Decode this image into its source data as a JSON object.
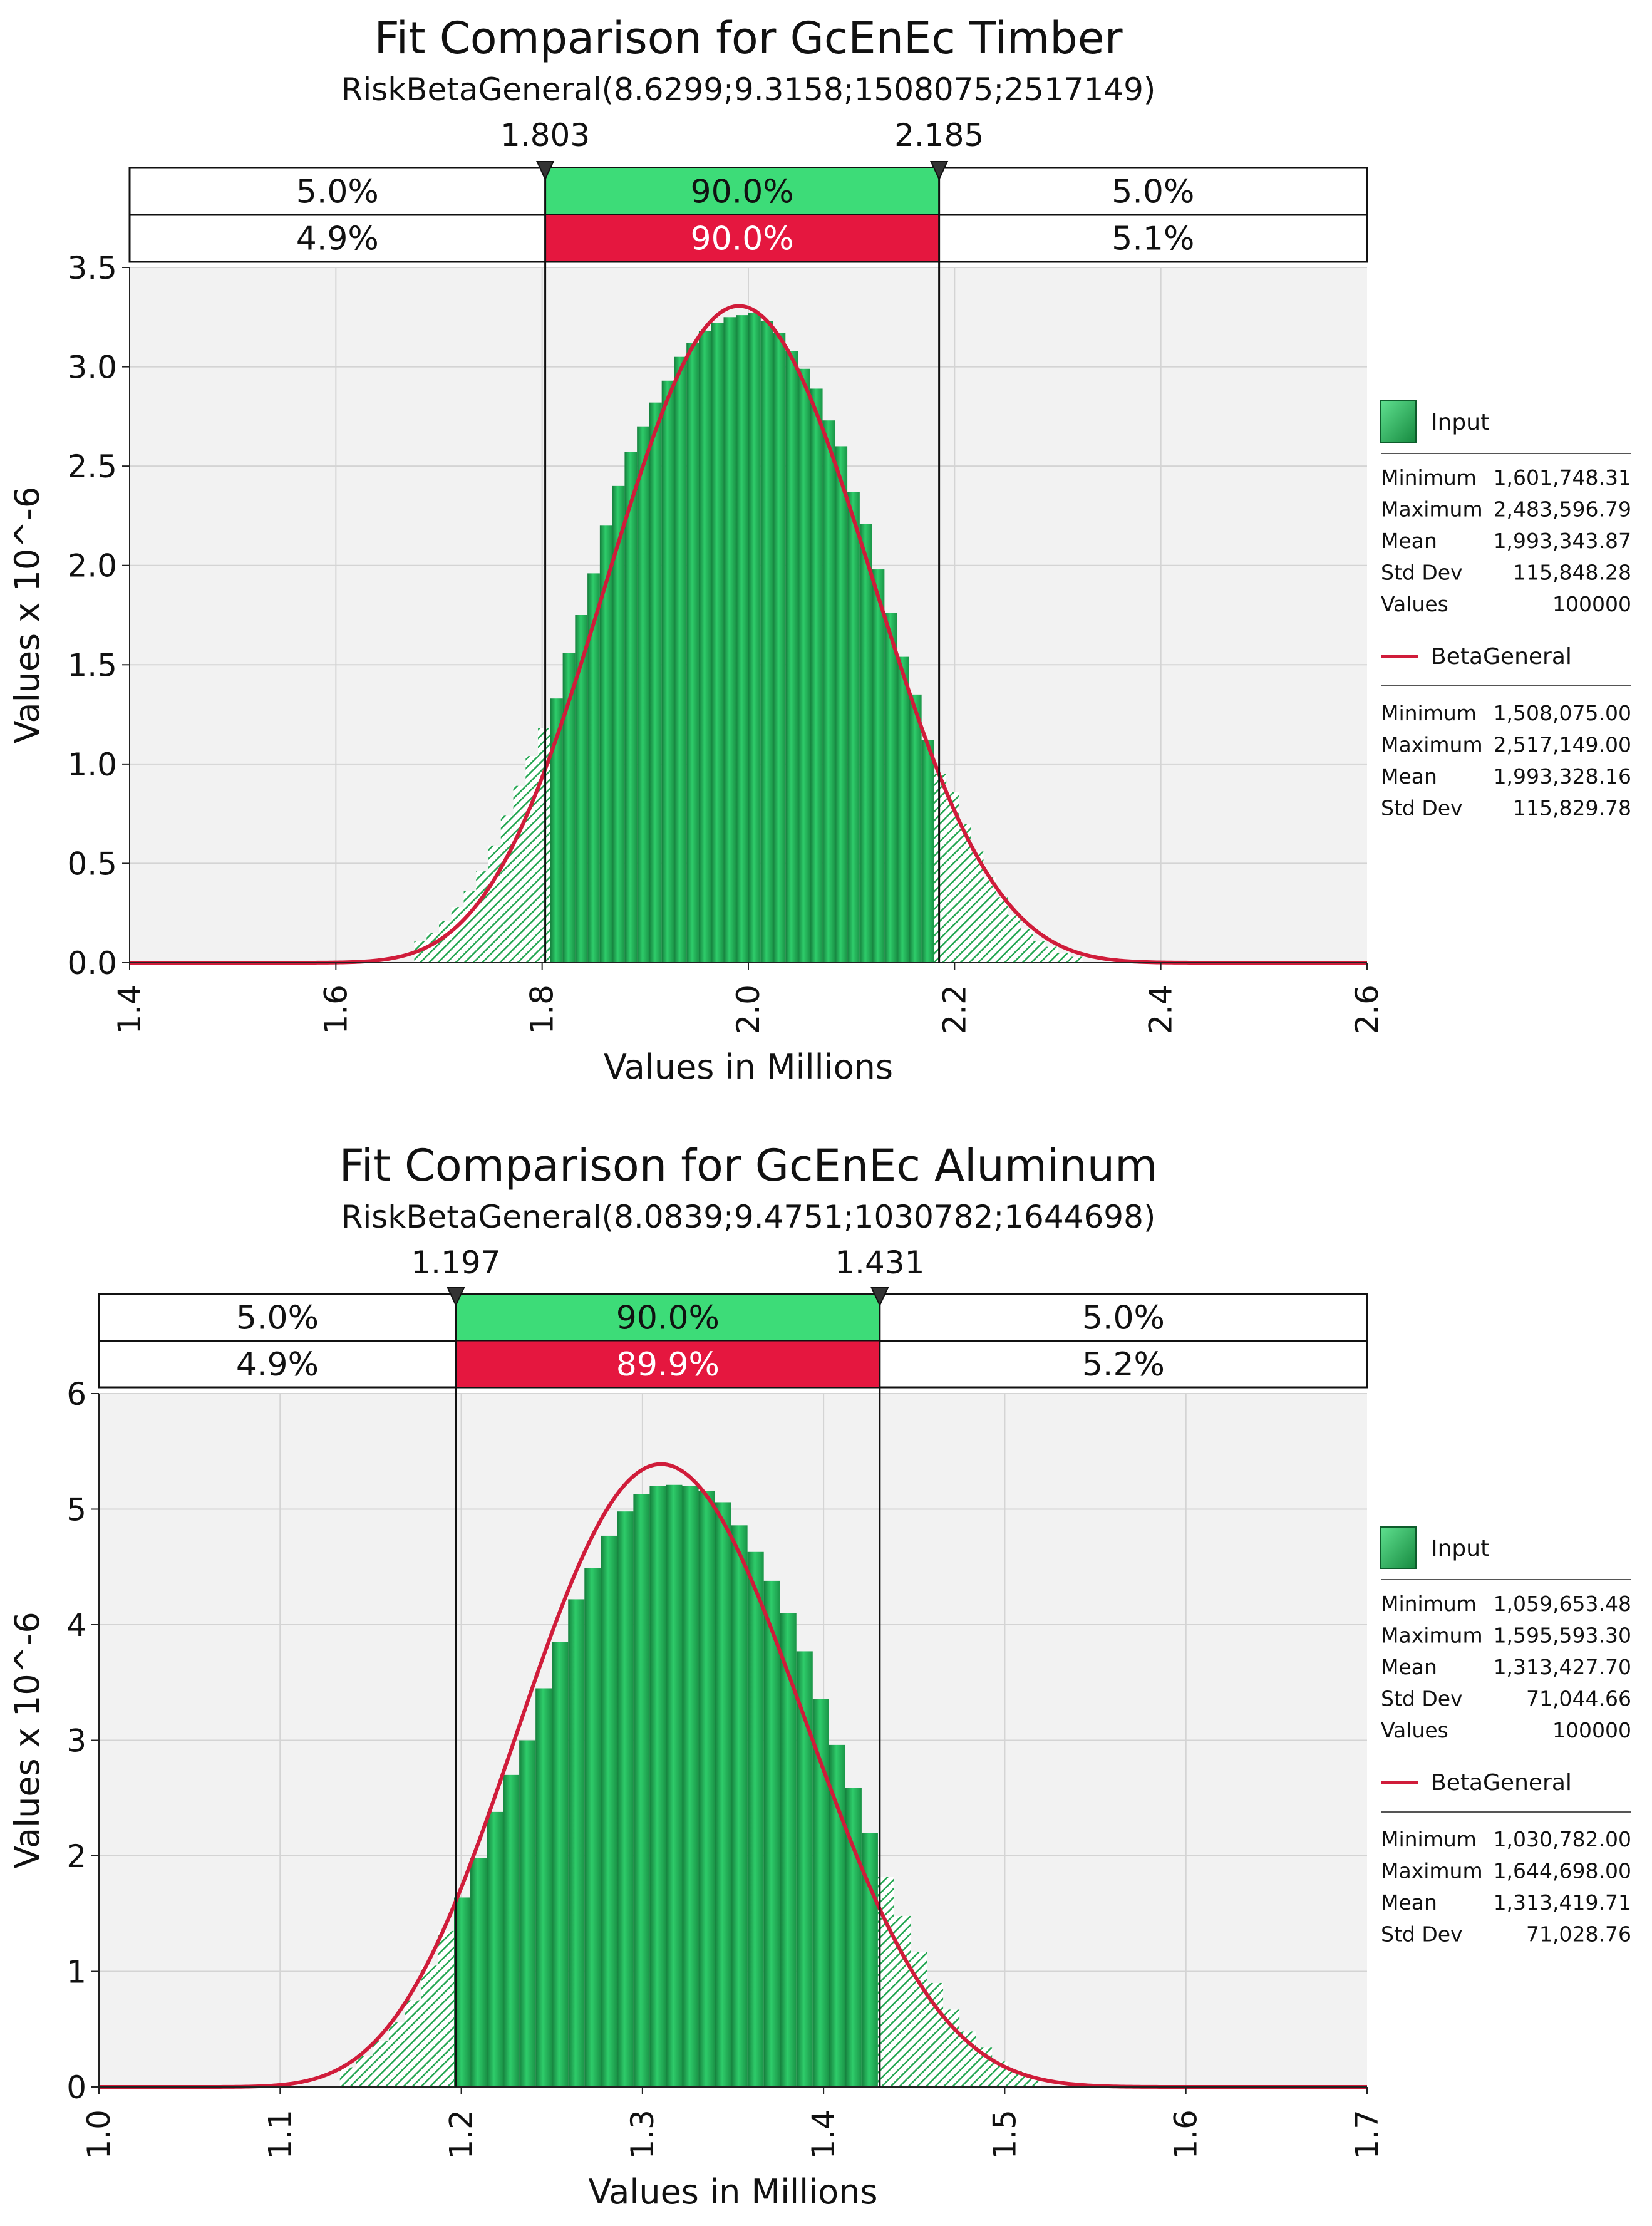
{
  "chart_data": [
    {
      "type": "bar",
      "title": "Fit Comparison for GcEnEc Timber",
      "subtitle": "RiskBetaGeneral(8.6299;9.3158;1508075;2517149)",
      "xlabel": "Values in Millions",
      "ylabel": "Values x 10^-6",
      "xlim": [
        1.4,
        2.6
      ],
      "ylim": [
        0,
        3.5
      ],
      "x_ticks": [
        1.4,
        1.6,
        1.8,
        2.0,
        2.2,
        2.4,
        2.6
      ],
      "x_tick_labels": [
        "1.4",
        "1.6",
        "1.8",
        "2.0",
        "2.2",
        "2.4",
        "2.6"
      ],
      "y_ticks": [
        0,
        0.5,
        1.0,
        1.5,
        2.0,
        2.5,
        3.0,
        3.5
      ],
      "y_tick_labels": [
        "0.0",
        "0.5",
        "1.0",
        "1.5",
        "2.0",
        "2.5",
        "3.0",
        "3.5"
      ],
      "grid": true,
      "markers": [
        {
          "value": 1.803,
          "label": "1.803"
        },
        {
          "value": 2.185,
          "label": "2.185"
        }
      ],
      "fit_band": [
        "5.0%",
        "90.0%",
        "5.0%"
      ],
      "input_band": [
        "4.9%",
        "90.0%",
        "5.1%"
      ],
      "series": [
        {
          "name": "Input",
          "type": "histogram",
          "color": "#2dbd5f",
          "bin_width": 0.012,
          "bin_centers": [
            1.682,
            1.694,
            1.706,
            1.718,
            1.73,
            1.742,
            1.754,
            1.766,
            1.778,
            1.79,
            1.802,
            1.814,
            1.826,
            1.838,
            1.85,
            1.862,
            1.874,
            1.886,
            1.898,
            1.91,
            1.922,
            1.934,
            1.946,
            1.958,
            1.97,
            1.982,
            1.994,
            2.006,
            2.018,
            2.03,
            2.042,
            2.054,
            2.066,
            2.078,
            2.09,
            2.102,
            2.114,
            2.126,
            2.138,
            2.15,
            2.162,
            2.174,
            2.186,
            2.198,
            2.21,
            2.222,
            2.234,
            2.246,
            2.258,
            2.27,
            2.282,
            2.294,
            2.306,
            2.318
          ],
          "values": [
            0.11,
            0.15,
            0.21,
            0.28,
            0.36,
            0.46,
            0.59,
            0.74,
            0.89,
            1.04,
            1.18,
            1.33,
            1.56,
            1.75,
            1.96,
            2.2,
            2.4,
            2.57,
            2.7,
            2.82,
            2.93,
            3.05,
            3.12,
            3.18,
            3.22,
            3.25,
            3.26,
            3.27,
            3.23,
            3.17,
            3.08,
            2.99,
            2.89,
            2.73,
            2.6,
            2.37,
            2.21,
            1.98,
            1.76,
            1.54,
            1.35,
            1.12,
            0.95,
            0.86,
            0.7,
            0.56,
            0.43,
            0.33,
            0.24,
            0.17,
            0.11,
            0.08,
            0.05,
            0.03
          ]
        },
        {
          "name": "BetaGeneral",
          "type": "line",
          "color": "#d01c3a",
          "alpha": 8.6299,
          "beta": 9.3158,
          "min": 1.508075,
          "max": 2.517149
        }
      ],
      "legend": {
        "input_label": "Input",
        "input_stats": [
          {
            "label": "Minimum",
            "value": "1,601,748.31"
          },
          {
            "label": "Maximum",
            "value": "2,483,596.79"
          },
          {
            "label": "Mean",
            "value": "1,993,343.87"
          },
          {
            "label": "Std Dev",
            "value": "115,848.28"
          },
          {
            "label": "Values",
            "value": "100000"
          }
        ],
        "fit_label": "BetaGeneral",
        "fit_stats": [
          {
            "label": "Minimum",
            "value": "1,508,075.00"
          },
          {
            "label": "Maximum",
            "value": "2,517,149.00"
          },
          {
            "label": "Mean",
            "value": "1,993,328.16"
          },
          {
            "label": "Std Dev",
            "value": "115,829.78"
          }
        ]
      }
    },
    {
      "type": "bar",
      "title": "Fit Comparison for GcEnEc Aluminum",
      "subtitle": "RiskBetaGeneral(8.0839;9.4751;1030782;1644698)",
      "xlabel": "Values in Millions",
      "ylabel": "Values x 10^-6",
      "xlim": [
        1.0,
        1.7
      ],
      "ylim": [
        0,
        6
      ],
      "x_ticks": [
        1.0,
        1.1,
        1.2,
        1.3,
        1.4,
        1.5,
        1.6,
        1.7
      ],
      "x_tick_labels": [
        "1.0",
        "1.1",
        "1.2",
        "1.3",
        "1.4",
        "1.5",
        "1.6",
        "1.7"
      ],
      "y_ticks": [
        0,
        1,
        2,
        3,
        4,
        5,
        6
      ],
      "y_tick_labels": [
        "0",
        "1",
        "2",
        "3",
        "4",
        "5",
        "6"
      ],
      "grid": true,
      "markers": [
        {
          "value": 1.197,
          "label": "1.197"
        },
        {
          "value": 1.431,
          "label": "1.431"
        }
      ],
      "fit_band": [
        "5.0%",
        "90.0%",
        "5.0%"
      ],
      "input_band": [
        "4.9%",
        "89.9%",
        "5.2%"
      ],
      "series": [
        {
          "name": "Input",
          "type": "histogram",
          "color": "#2dbd5f",
          "bin_width": 0.009,
          "bin_centers": [
            1.1375,
            1.1465,
            1.1555,
            1.1645,
            1.1735,
            1.1825,
            1.1915,
            1.2005,
            1.2095,
            1.2185,
            1.2275,
            1.2365,
            1.2455,
            1.2545,
            1.2635,
            1.2725,
            1.2815,
            1.2905,
            1.2995,
            1.3085,
            1.3175,
            1.3265,
            1.3355,
            1.3445,
            1.3535,
            1.3625,
            1.3715,
            1.3805,
            1.3895,
            1.3985,
            1.4075,
            1.4165,
            1.4255,
            1.4345,
            1.4435,
            1.4525,
            1.4615,
            1.4705,
            1.4795,
            1.4885,
            1.4975,
            1.5065,
            1.5155
          ],
          "values": [
            0.17,
            0.27,
            0.4,
            0.56,
            0.75,
            1.05,
            1.35,
            1.64,
            1.98,
            2.38,
            2.7,
            3.0,
            3.45,
            3.85,
            4.22,
            4.49,
            4.77,
            4.98,
            5.13,
            5.2,
            5.21,
            5.2,
            5.16,
            5.06,
            4.86,
            4.63,
            4.38,
            4.1,
            3.77,
            3.36,
            2.96,
            2.59,
            2.2,
            1.82,
            1.48,
            1.17,
            0.9,
            0.67,
            0.48,
            0.34,
            0.22,
            0.14,
            0.08
          ]
        },
        {
          "name": "BetaGeneral",
          "type": "line",
          "color": "#d01c3a",
          "alpha": 8.0839,
          "beta": 9.4751,
          "min": 1.030782,
          "max": 1.644698
        }
      ],
      "legend": {
        "input_label": "Input",
        "input_stats": [
          {
            "label": "Minimum",
            "value": "1,059,653.48"
          },
          {
            "label": "Maximum",
            "value": "1,595,593.30"
          },
          {
            "label": "Mean",
            "value": "1,313,427.70"
          },
          {
            "label": "Std Dev",
            "value": "71,044.66"
          },
          {
            "label": "Values",
            "value": "100000"
          }
        ],
        "fit_label": "BetaGeneral",
        "fit_stats": [
          {
            "label": "Minimum",
            "value": "1,030,782.00"
          },
          {
            "label": "Maximum",
            "value": "1,644,698.00"
          },
          {
            "label": "Mean",
            "value": "1,313,419.71"
          },
          {
            "label": "Std Dev",
            "value": "71,028.76"
          }
        ]
      }
    }
  ]
}
